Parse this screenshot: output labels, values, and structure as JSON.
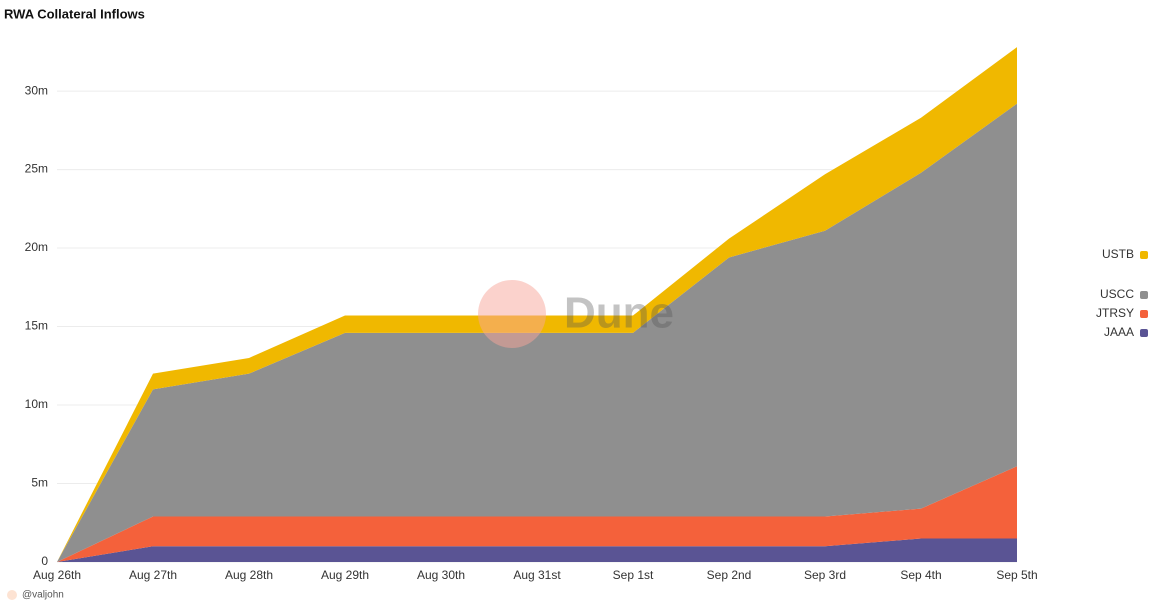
{
  "chart_data": {
    "type": "stacked_area",
    "title": "RWA Collateral Inflows",
    "categories": [
      "Aug 26th",
      "Aug 27th",
      "Aug 28th",
      "Aug 29th",
      "Aug 30th",
      "Aug 31st",
      "Sep 1st",
      "Sep 2nd",
      "Sep 3rd",
      "Sep 4th",
      "Sep 5th"
    ],
    "series": [
      {
        "name": "JAAA",
        "color": "#5a5494",
        "values": [
          0,
          1.0,
          1.0,
          1.0,
          1.0,
          1.0,
          1.0,
          1.0,
          1.0,
          1.5,
          1.5
        ]
      },
      {
        "name": "JTRSY",
        "color": "#f4613b",
        "values": [
          0,
          1.9,
          1.9,
          1.9,
          1.9,
          1.9,
          1.9,
          1.9,
          1.9,
          1.9,
          4.6
        ]
      },
      {
        "name": "USCC",
        "color": "#8f8f8f",
        "values": [
          0,
          8.1,
          9.1,
          11.7,
          11.7,
          11.7,
          11.7,
          16.5,
          18.2,
          21.4,
          23.1
        ]
      },
      {
        "name": "USTB",
        "color": "#f0b800",
        "values": [
          0,
          1.0,
          1.0,
          1.1,
          1.1,
          1.1,
          1.1,
          1.2,
          3.6,
          3.5,
          3.6
        ]
      }
    ],
    "ylim": [
      0,
      33
    ],
    "yticks": [
      0,
      {
        "value": 5,
        "label": "5m"
      },
      {
        "value": 10,
        "label": "10m"
      },
      {
        "value": 15,
        "label": "15m"
      },
      {
        "value": 20,
        "label": "20m"
      },
      {
        "value": 25,
        "label": "25m"
      },
      {
        "value": 30,
        "label": "30m"
      }
    ],
    "grid": true,
    "legend": "right",
    "watermark": "Dune",
    "credit": "@valjohn"
  }
}
